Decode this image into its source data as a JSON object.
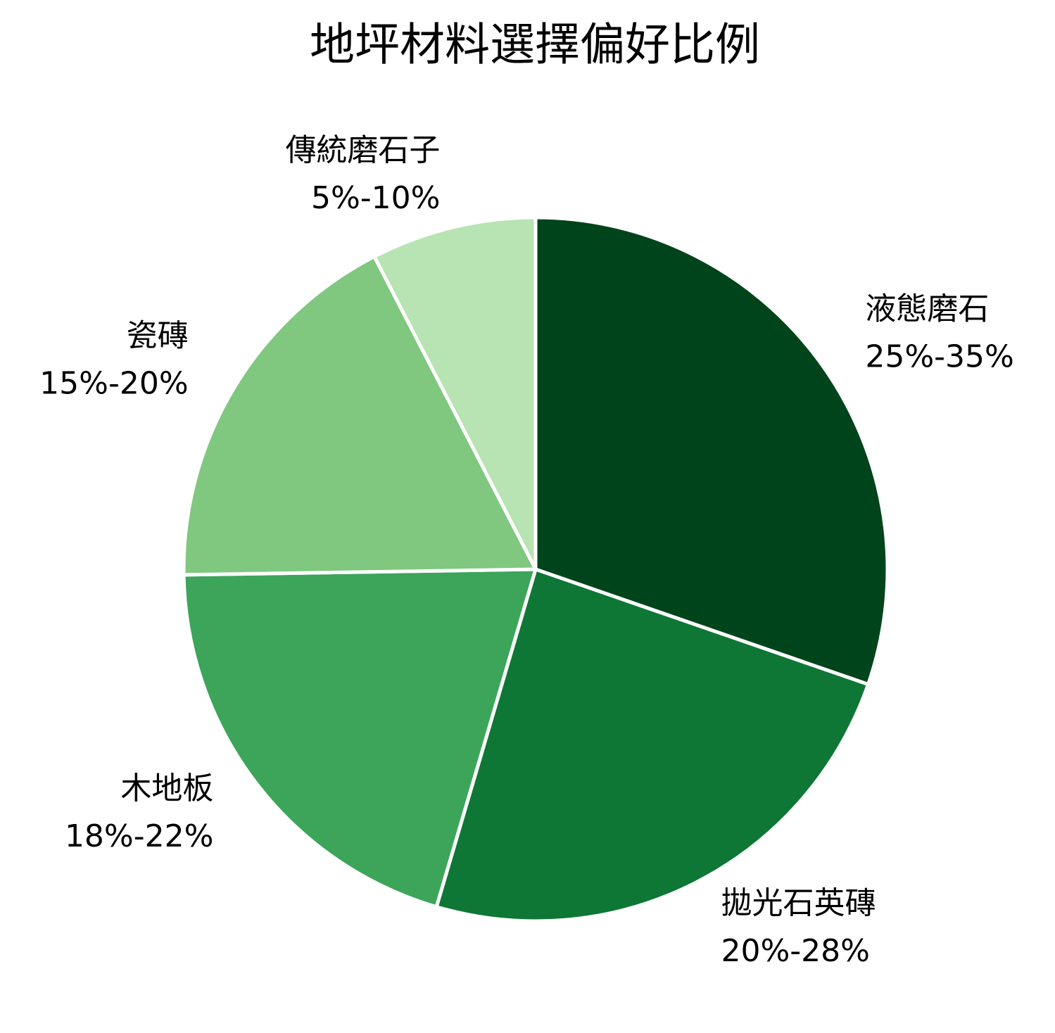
{
  "chart_data": {
    "type": "pie",
    "title": "地坪材料選擇偏好比例",
    "categories": [
      "液態磨石",
      "拋光石英磚",
      "木地板",
      "瓷磚",
      "傳統磨石子"
    ],
    "values": [
      30,
      24,
      20,
      17.5,
      7.5
    ],
    "value_labels": [
      "25%-35%",
      "20%-28%",
      "18%-22%",
      "15%-20%",
      "5%-10%"
    ],
    "colors": [
      "#00441b",
      "#0e7735",
      "#3ca55a",
      "#80c780",
      "#b8e3b3"
    ]
  }
}
